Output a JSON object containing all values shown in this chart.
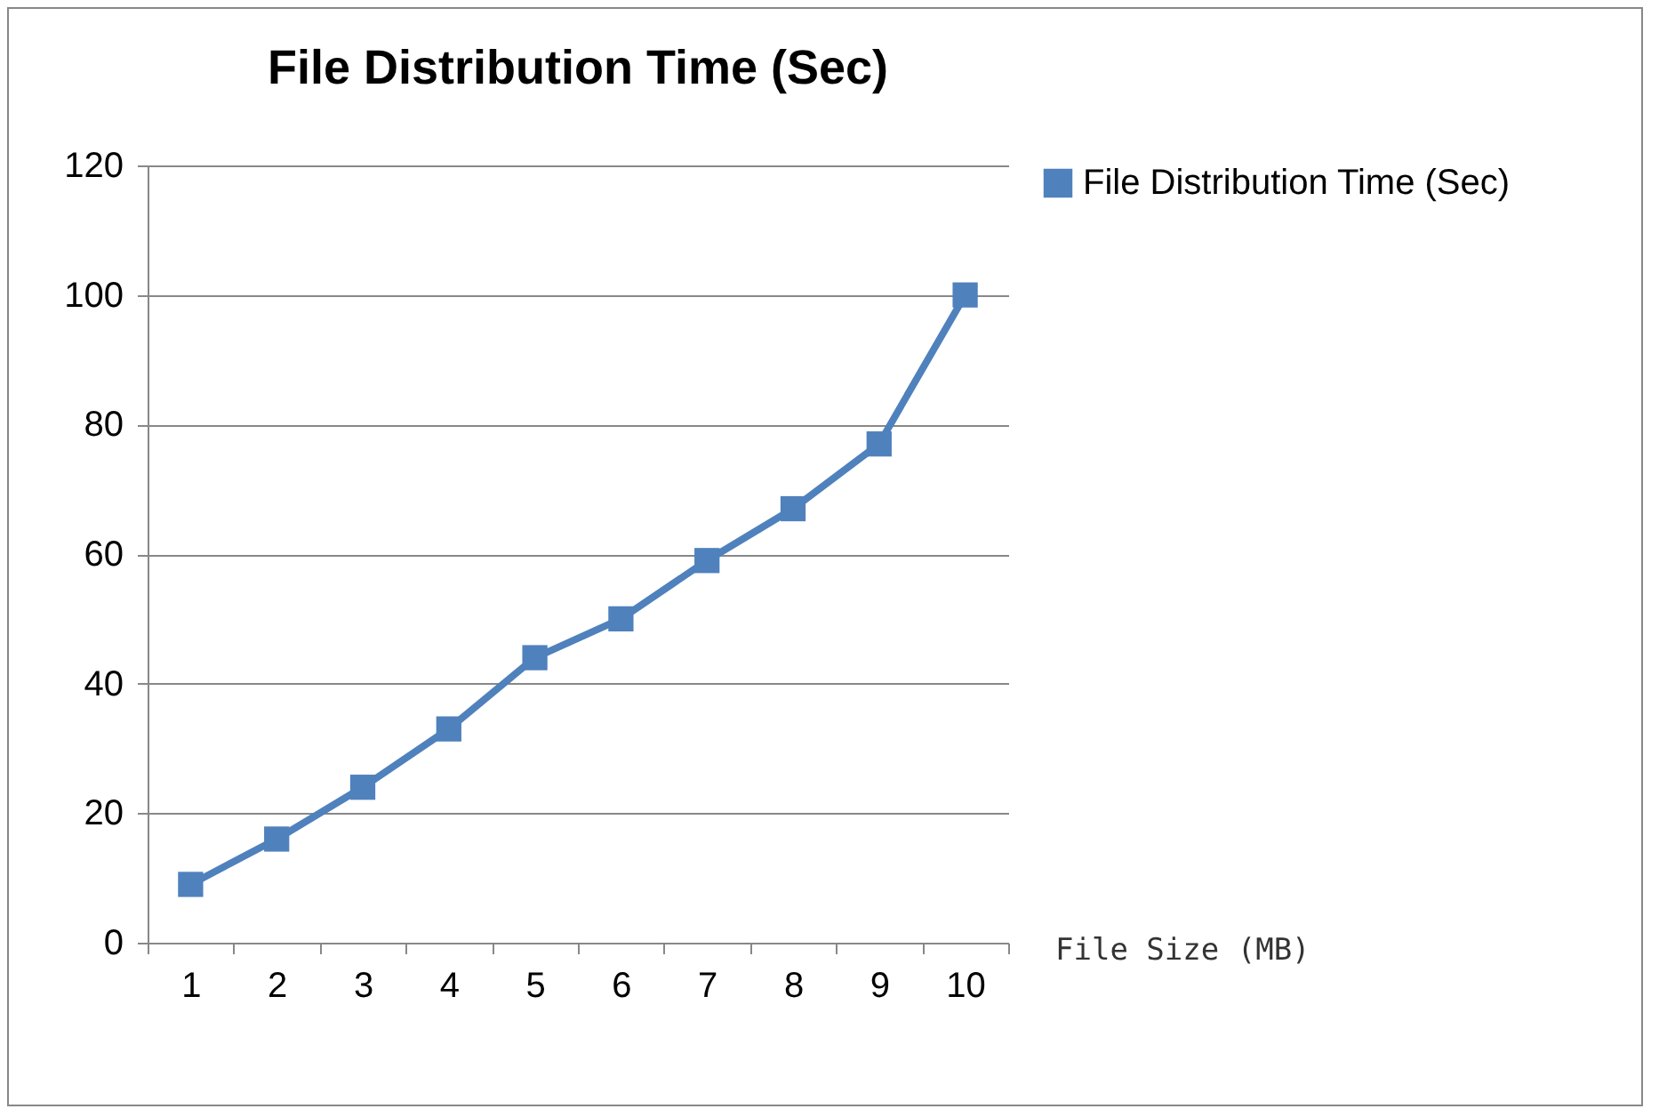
{
  "chart_data": {
    "type": "line",
    "title": "File Distribution Time (Sec)",
    "xlabel": "File Size (MB)",
    "categories": [
      "1",
      "2",
      "3",
      "4",
      "5",
      "6",
      "7",
      "8",
      "9",
      "10"
    ],
    "series": [
      {
        "name": "File Distribution Time (Sec)",
        "color": "#4f81bd",
        "values": [
          9,
          16,
          24,
          33,
          44,
          50,
          59,
          67,
          77,
          100
        ]
      }
    ],
    "ylim": [
      0,
      120
    ],
    "yticks": [
      0,
      20,
      40,
      60,
      80,
      100,
      120
    ],
    "grid": "y",
    "legend": "right",
    "marker": "square",
    "line_style": "solid"
  }
}
